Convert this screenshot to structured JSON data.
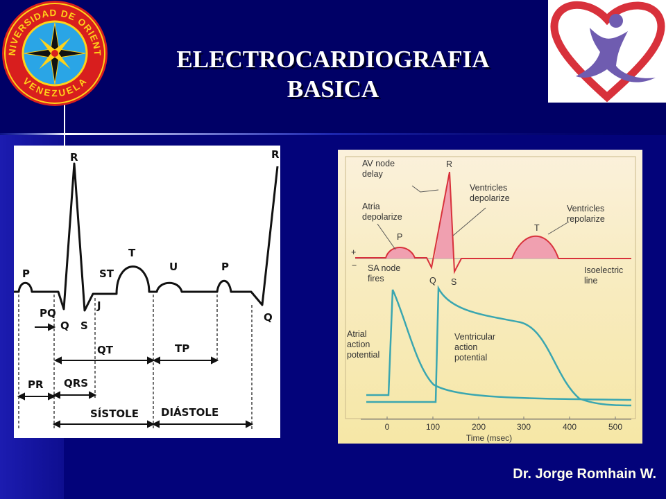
{
  "header": {
    "title": [
      "ELECTROCARDIOGRAFIA",
      "BASICA"
    ],
    "logo_text": {
      "top": "UNIVERSIDAD DE ORIENTE",
      "bottom": "VENEZUELA"
    }
  },
  "left_diagram": {
    "labels": [
      "P",
      "R",
      "Q",
      "S",
      "ST",
      "T",
      "U",
      "P",
      "R",
      "Q",
      "J",
      "PQ",
      "QT",
      "TP",
      "PR",
      "QRS",
      "SÍSTOLE",
      "DIÁSTOLE"
    ]
  },
  "right_diagram": {
    "av_node_delay": [
      "AV node",
      "delay"
    ],
    "r": "R",
    "ventricles_depolarize": [
      "Ventricles",
      "depolarize"
    ],
    "atria_depolarize": [
      "Atria",
      "depolarize"
    ],
    "p": "P",
    "ventricles_repolarize": [
      "Ventricles",
      "repolarize"
    ],
    "t": "T",
    "plus": "+",
    "minus": "−",
    "sa_node_fires": [
      "SA node",
      "fires"
    ],
    "q": "Q",
    "s": "S",
    "isoelectric_line": [
      "Isoelectric",
      "line"
    ],
    "atrial_action_potential": [
      "Atrial",
      "action",
      "potential"
    ],
    "ventricular_action_potential": [
      "Ventricular",
      "action",
      "potential"
    ],
    "x_ticks": [
      0,
      100,
      200,
      300,
      400,
      500
    ],
    "x_label": "Time (msec)"
  },
  "footer": {
    "author": "Dr. Jorge Romhain W."
  }
}
